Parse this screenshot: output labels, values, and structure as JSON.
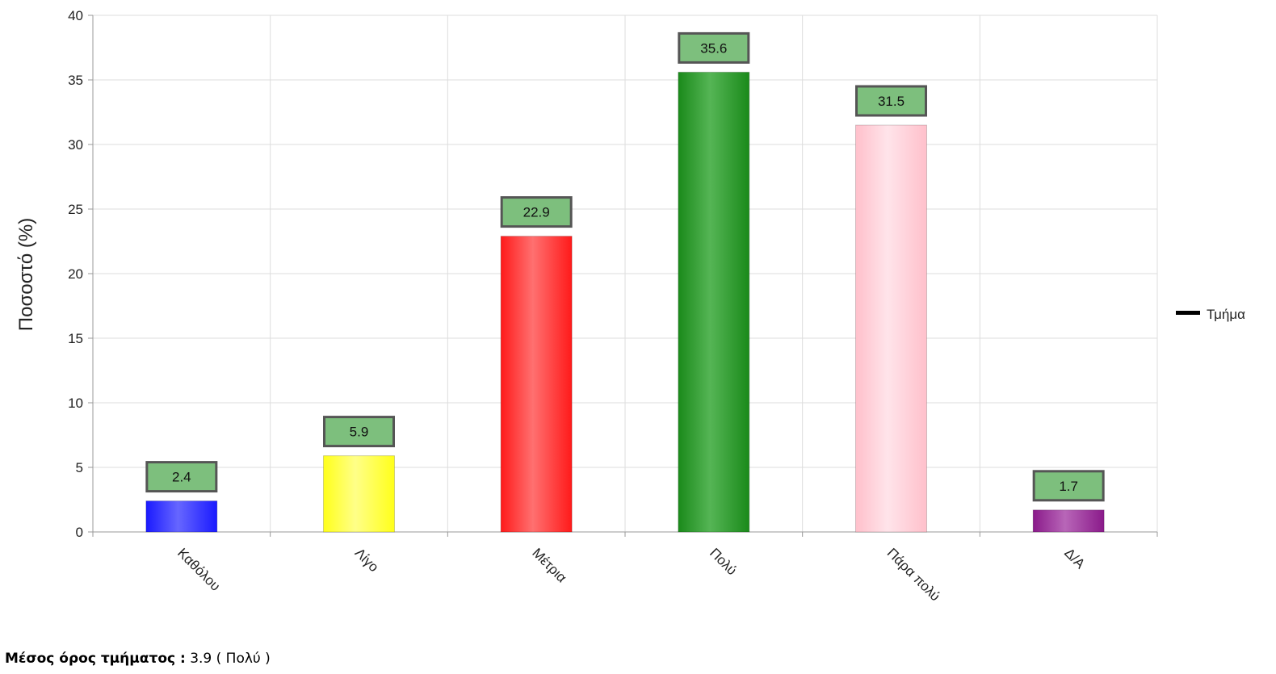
{
  "chart_data": {
    "type": "bar",
    "categories": [
      "Καθόλου",
      "Λίγο",
      "Μέτρια",
      "Πολύ",
      "Πάρα πολύ",
      "Δ/Α"
    ],
    "series": [
      {
        "name": "Τμήμα",
        "values": [
          2.4,
          5.9,
          22.9,
          35.6,
          31.5,
          1.7
        ]
      }
    ],
    "data_labels": [
      "2.4",
      "5.9",
      "22.9",
      "35.6",
      "31.5",
      "1.7"
    ],
    "bar_colors": [
      "#1a1aff",
      "#ffff1a",
      "#ff1a1a",
      "#1a8a1a",
      "#ffc0cb",
      "#8a1a8a"
    ],
    "bar_highlight_colors": [
      "#6666ff",
      "#ffff88",
      "#ff7070",
      "#55b555",
      "#ffe4ea",
      "#b866b8"
    ],
    "label_box_color": "#7dbf7d",
    "label_box_border": "#555555",
    "ylabel": "Ποσοστό (%)",
    "xlabel": "",
    "ylim": [
      0,
      40
    ],
    "yticks": [
      "0",
      "5",
      "10",
      "15",
      "20",
      "25",
      "30",
      "35",
      "40"
    ],
    "grid": true,
    "legend": {
      "position": "right",
      "entries": [
        "Τμήμα"
      ]
    }
  },
  "footer": {
    "label": "Μέσος όρος τμήματος :",
    "value": "3.9 ( Πολύ )"
  }
}
